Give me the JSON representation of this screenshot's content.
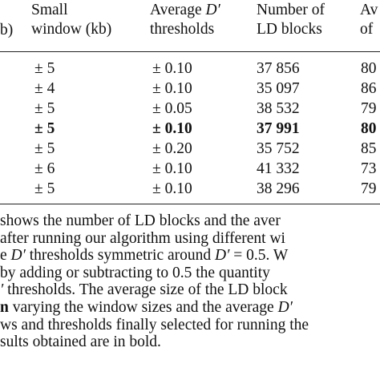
{
  "table": {
    "headers": [
      {
        "line1": "Small",
        "line2": "window (kb)"
      },
      {
        "line1_pre": "Average ",
        "line1_var": "D′",
        "line2": "thresholds"
      },
      {
        "line1": "Number of",
        "line2": "LD blocks"
      },
      {
        "line1": "Av",
        "line2": "of"
      }
    ],
    "left_header_fragment": "b)",
    "rows": [
      {
        "window": "± 5",
        "threshold": "± 0.10",
        "blocks": "37 856",
        "avg": "80",
        "bold": false
      },
      {
        "window": "± 4",
        "threshold": "± 0.10",
        "blocks": "35 097",
        "avg": "86",
        "bold": false
      },
      {
        "window": "± 5",
        "threshold": "± 0.05",
        "blocks": "38 532",
        "avg": "79",
        "bold": false
      },
      {
        "window": "± 5",
        "threshold": "± 0.10",
        "blocks": "37 991",
        "avg": "80",
        "bold": true
      },
      {
        "window": "± 5",
        "threshold": "± 0.20",
        "blocks": "35 752",
        "avg": "85",
        "bold": false
      },
      {
        "window": "± 6",
        "threshold": "± 0.10",
        "blocks": "41 332",
        "avg": "73",
        "bold": false
      },
      {
        "window": "± 5",
        "threshold": "± 0.10",
        "blocks": "38 296",
        "avg": "79",
        "bold": false
      }
    ]
  },
  "caption": {
    "l1": "shows the number of LD blocks and the aver",
    "l2": " after running our algorithm using different wi",
    "l3a": "e ",
    "l3b": "D′",
    "l3c": " thresholds symmetric around ",
    "l3d": "D′",
    "l3e": " = 0.5.  W",
    "l4": "by adding or subtracting to 0.5 the quantity",
    "l5a": "′",
    "l5b": " thresholds. The average size of the LD block",
    "l6a": "n",
    "l6b": " varying the window sizes and the average ",
    "l6c": "D′",
    "l7": "ws and thresholds finally selected for running the",
    "l8": "sults obtained are in bold."
  }
}
